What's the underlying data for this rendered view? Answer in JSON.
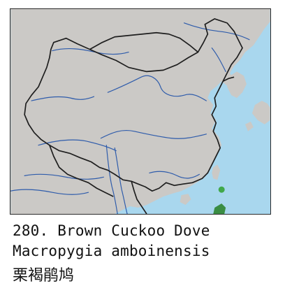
{
  "caption": {
    "number_en": "280. Brown Cuckoo Dove",
    "latin": "Macropygia amboinensis",
    "chinese": "栗褐鹃鸠"
  },
  "colors": {
    "land": "#cbc9c6",
    "sea": "#a9d7ee",
    "river": "#2f5cab",
    "border": "#1e1e1e",
    "occurrence": "#41a84a",
    "occurrence_region": "#3a8d43"
  }
}
